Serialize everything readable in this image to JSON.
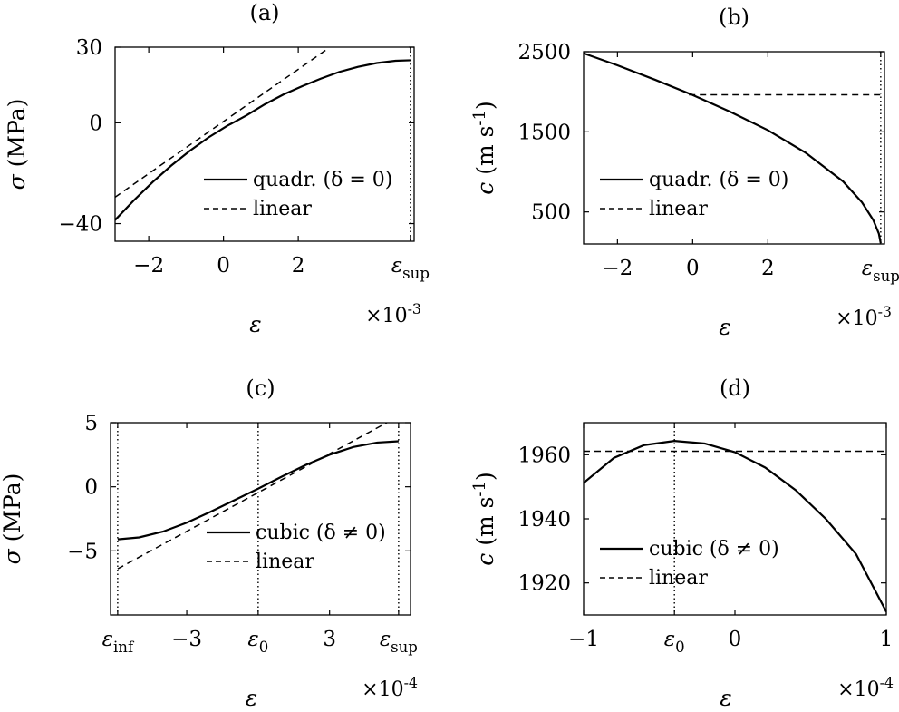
{
  "chart_data": [
    {
      "panel": "a",
      "title": "(a)",
      "type": "line",
      "xlabel": "ε",
      "ylabel": "σ (MPa)",
      "x_multiplier": "×10^-3",
      "xlim": [
        -2.9,
        5.1
      ],
      "ylim": [
        -47,
        30
      ],
      "xticks": [
        {
          "v": -2,
          "label": "−2"
        },
        {
          "v": 0,
          "label": "0"
        },
        {
          "v": 2,
          "label": "2"
        },
        {
          "v": 5.0,
          "label": "ε_sup"
        }
      ],
      "yticks": [
        {
          "v": 30,
          "label": "30"
        },
        {
          "v": 0,
          "label": "0"
        },
        {
          "v": -40,
          "label": "−40"
        }
      ],
      "vlines": [
        5.0
      ],
      "hlines": [],
      "legend_position": "lower-right",
      "series": [
        {
          "name": "quadr. (δ = 0)",
          "style": "solid",
          "x": [
            -2.9,
            -2.4,
            -1.9,
            -1.4,
            -0.9,
            -0.4,
            0.1,
            0.6,
            1.1,
            1.6,
            2.1,
            2.6,
            3.1,
            3.6,
            4.1,
            4.6,
            5.0
          ],
          "y": [
            -38.6,
            -30.8,
            -23.6,
            -17.0,
            -11.1,
            -5.8,
            -1.2,
            2.8,
            7.3,
            11.2,
            14.5,
            17.5,
            20.2,
            22.2,
            23.7,
            24.6,
            24.8
          ]
        },
        {
          "name": "linear",
          "style": "dashed",
          "x": [
            -2.9,
            2.8
          ],
          "y": [
            -29.5,
            29.5
          ]
        }
      ]
    },
    {
      "panel": "b",
      "title": "(b)",
      "type": "line",
      "xlabel": "ε",
      "ylabel": "c (m s^-1)",
      "x_multiplier": "×10^-3",
      "xlim": [
        -2.9,
        5.1
      ],
      "ylim": [
        100,
        2500
      ],
      "xticks": [
        {
          "v": -2,
          "label": "−2"
        },
        {
          "v": 0,
          "label": "0"
        },
        {
          "v": 2,
          "label": "2"
        },
        {
          "v": 5.0,
          "label": "ε_sup"
        }
      ],
      "yticks": [
        {
          "v": 2500,
          "label": "2500"
        },
        {
          "v": 1500,
          "label": "1500"
        },
        {
          "v": 500,
          "label": "500"
        }
      ],
      "vlines": [
        5.0
      ],
      "hlines": [],
      "legend_position": "lower-left",
      "series": [
        {
          "name": "quadr. (δ = 0)",
          "style": "solid",
          "x": [
            -2.9,
            -2.0,
            -1.0,
            0.0,
            1.0,
            2.0,
            3.0,
            4.0,
            4.5,
            4.8,
            4.95,
            5.0
          ],
          "y": [
            2480,
            2330,
            2150,
            1960,
            1750,
            1520,
            1240,
            880,
            620,
            400,
            230,
            110
          ]
        },
        {
          "name": "linear",
          "style": "dashed",
          "x": [
            -0.1,
            5.0
          ],
          "y": [
            1962,
            1962
          ]
        }
      ]
    },
    {
      "panel": "c",
      "title": "(c)",
      "type": "line",
      "xlabel": "ε",
      "ylabel": "σ (MPa)",
      "x_multiplier": "×10^-4",
      "xlim": [
        -6.2,
        6.4
      ],
      "ylim": [
        -10,
        5
      ],
      "xticks": [
        {
          "v": -5.9,
          "label": "ε_inf"
        },
        {
          "v": -3,
          "label": "−3"
        },
        {
          "v": 0,
          "label": "ε_0"
        },
        {
          "v": 3,
          "label": "3"
        },
        {
          "v": 5.9,
          "label": "ε_sup"
        }
      ],
      "yticks": [
        {
          "v": 5,
          "label": "5"
        },
        {
          "v": 0,
          "label": "0"
        },
        {
          "v": -5,
          "label": "−5"
        }
      ],
      "vlines": [
        -5.9,
        0,
        5.9
      ],
      "hlines": [],
      "legend_position": "lower-right",
      "series": [
        {
          "name": "cubic (δ ≠ 0)",
          "style": "solid",
          "x": [
            -5.9,
            -5.0,
            -4.0,
            -3.0,
            -2.0,
            -1.0,
            0.0,
            1.0,
            2.0,
            3.0,
            4.0,
            5.0,
            5.9
          ],
          "y": [
            -4.1,
            -3.95,
            -3.5,
            -2.8,
            -1.95,
            -1.05,
            -0.15,
            0.8,
            1.7,
            2.5,
            3.1,
            3.45,
            3.55
          ]
        },
        {
          "name": "linear",
          "style": "dashed",
          "x": [
            -5.9,
            5.9
          ],
          "y": [
            -6.4,
            5.5
          ]
        }
      ]
    },
    {
      "panel": "d",
      "title": "(d)",
      "type": "line",
      "xlabel": "ε",
      "ylabel": "c (m s^-1)",
      "x_multiplier": "×10^-4",
      "xlim": [
        -1,
        1
      ],
      "ylim": [
        1910,
        1970
      ],
      "xticks": [
        {
          "v": -1,
          "label": "−1"
        },
        {
          "v": -0.4,
          "label": "ε_0"
        },
        {
          "v": 0,
          "label": "0"
        },
        {
          "v": 1,
          "label": "1"
        }
      ],
      "yticks": [
        {
          "v": 1960,
          "label": "1960"
        },
        {
          "v": 1940,
          "label": "1940"
        },
        {
          "v": 1920,
          "label": "1920"
        }
      ],
      "vlines": [
        -0.4
      ],
      "hlines": [],
      "legend_position": "lower-left",
      "series": [
        {
          "name": "cubic (δ ≠ 0)",
          "style": "solid",
          "x": [
            -1.0,
            -0.8,
            -0.6,
            -0.4,
            -0.2,
            0.0,
            0.2,
            0.4,
            0.6,
            0.8,
            1.0
          ],
          "y": [
            1951.2,
            1959.0,
            1963.0,
            1964.3,
            1963.5,
            1960.8,
            1956.0,
            1949.0,
            1940.0,
            1929.0,
            1911.0
          ]
        },
        {
          "name": "linear",
          "style": "dashed",
          "x": [
            -1.0,
            1.0
          ],
          "y": [
            1961.1,
            1961.1
          ]
        }
      ]
    }
  ]
}
